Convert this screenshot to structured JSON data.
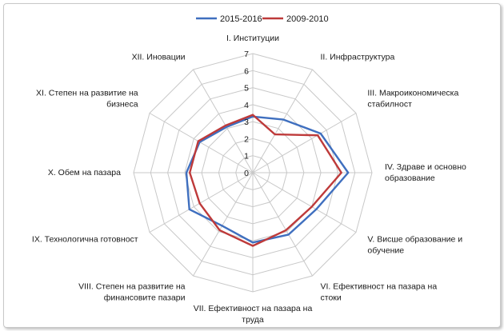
{
  "chart_data": {
    "type": "radar",
    "axes": [
      [
        "I. Институции"
      ],
      [
        "II. Инфраструктура"
      ],
      [
        "III. Макроикономическа",
        "стабилност"
      ],
      [
        "IV. Здраве и основно",
        "образование"
      ],
      [
        "V. Висше образование и",
        "обучение"
      ],
      [
        "VI. Ефективност на пазара на",
        "стоки"
      ],
      [
        "VII. Ефективност на пазара на",
        "труда"
      ],
      [
        "VIII. Степен на развитие на",
        "финансовите пазари"
      ],
      [
        "IX. Технологична готовност"
      ],
      [
        "X. Обем на пазара"
      ],
      [
        "XI. Степен на развитие на",
        "бизнеса"
      ],
      [
        "XII. Иновации"
      ]
    ],
    "rlim": [
      0,
      7
    ],
    "ticks": [
      "0",
      "1",
      "2",
      "3",
      "4",
      "5",
      "6",
      "7"
    ],
    "grid": true,
    "legend_position": "top",
    "series": [
      {
        "name": "2015-2016",
        "color": "#3f6fbf",
        "values": [
          3.3,
          3.6,
          4.6,
          5.6,
          4.3,
          4.2,
          4.1,
          3.6,
          4.3,
          3.9,
          3.6,
          3.1
        ]
      },
      {
        "name": "2009-2010",
        "color": "#be3a3a",
        "values": [
          3.4,
          2.6,
          4.4,
          5.2,
          4.0,
          3.9,
          4.3,
          3.9,
          3.6,
          3.7,
          3.7,
          3.2
        ]
      }
    ]
  }
}
